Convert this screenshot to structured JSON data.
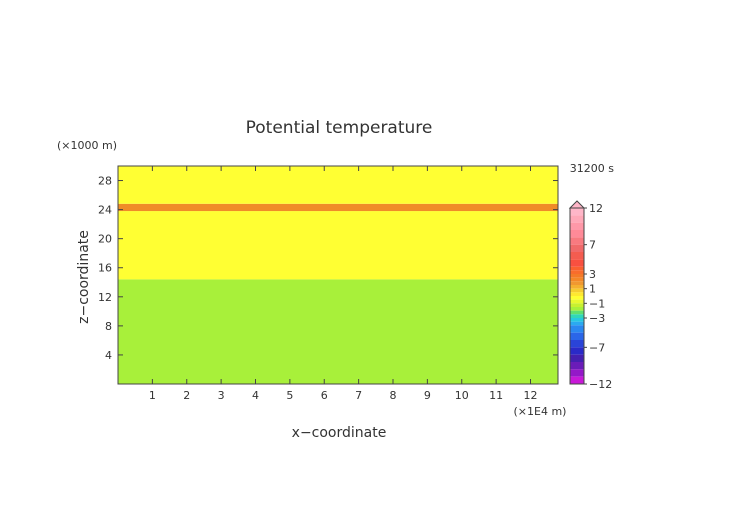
{
  "chart_data": {
    "type": "heatmap",
    "title": "Potential temperature",
    "xlabel": "x−coordinate",
    "ylabel": "z−coordinate",
    "x_unit": "(×1E4 m)",
    "y_unit": "(×1000 m)",
    "time_label": "31200 s",
    "xlim": [
      0,
      12.8
    ],
    "ylim": [
      0,
      30
    ],
    "x_ticks": [
      1,
      2,
      3,
      4,
      5,
      6,
      7,
      8,
      9,
      10,
      11,
      12
    ],
    "y_ticks": [
      4,
      8,
      12,
      16,
      20,
      24,
      28
    ],
    "regions": [
      {
        "value": -0.5,
        "z_bottom": 0,
        "z_top": 14.4,
        "color": "#a8f03a"
      },
      {
        "value": 0.5,
        "z_bottom": 14.4,
        "z_top": 23.8,
        "color": "#ffff33"
      },
      {
        "value": 2.0,
        "z_bottom": 23.8,
        "z_top": 24.8,
        "color": "#f08c28"
      },
      {
        "value": 0.5,
        "z_bottom": 24.8,
        "z_top": 30,
        "color": "#ffff33"
      }
    ],
    "colorbar": {
      "labels": [
        "12",
        "7",
        "3",
        "1",
        "−1",
        "−3",
        "−7",
        "−12"
      ],
      "label_values": [
        12,
        7,
        3,
        1,
        -1,
        -3,
        -7,
        -12
      ],
      "levels": [
        12,
        11,
        10,
        9,
        8,
        7,
        6,
        5,
        4,
        3.5,
        3,
        2.5,
        2,
        1.5,
        1,
        0.5,
        0,
        -0.5,
        -1,
        -1.5,
        -2,
        -2.5,
        -3,
        -3.5,
        -4,
        -5,
        -6,
        -7,
        -8,
        -9,
        -10,
        -11,
        -12
      ],
      "colors": [
        "#ffb6c8",
        "#ffa8b8",
        "#ff98a8",
        "#ff8a98",
        "#f87a80",
        "#f06a6a",
        "#f45c50",
        "#f85040",
        "#fa6030",
        "#f86c2c",
        "#f47a28",
        "#f48828",
        "#f09830",
        "#f4b030",
        "#f6cc30",
        "#ffe830",
        "#ffff33",
        "#e8f830",
        "#c8f030",
        "#a8f03a",
        "#60e070",
        "#30d8b8",
        "#28c8e0",
        "#2aaaf0",
        "#2a88f0",
        "#2a66e8",
        "#2a44d8",
        "#2a2ac8",
        "#4420b0",
        "#6a1cb8",
        "#9418c8",
        "#c818d8",
        "#f018c8"
      ]
    }
  }
}
